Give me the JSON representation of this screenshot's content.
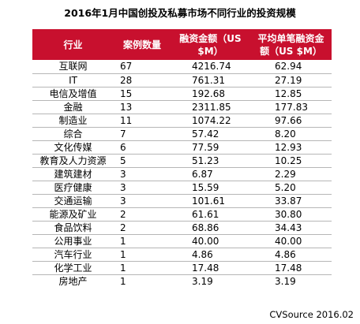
{
  "title": "2016年1月中国创投及私募市场不同行业的投资规模",
  "table": {
    "headers": {
      "industry": "行业",
      "count": "案例数量",
      "amount": "融资金额（US $M）",
      "avg": "平均单笔融资金额（US $M）"
    },
    "rows": [
      {
        "industry": "互联网",
        "count": "67",
        "amount": "4216.74",
        "avg": "62.94"
      },
      {
        "industry": "IT",
        "count": "28",
        "amount": "761.31",
        "avg": "27.19"
      },
      {
        "industry": "电信及增值",
        "count": "15",
        "amount": "192.68",
        "avg": "12.85"
      },
      {
        "industry": "金融",
        "count": "13",
        "amount": "2311.85",
        "avg": "177.83"
      },
      {
        "industry": "制造业",
        "count": "11",
        "amount": "1074.22",
        "avg": "97.66"
      },
      {
        "industry": "综合",
        "count": "7",
        "amount": "57.42",
        "avg": "8.20"
      },
      {
        "industry": "文化传媒",
        "count": "6",
        "amount": "77.59",
        "avg": "12.93"
      },
      {
        "industry": "教育及人力资源",
        "count": "5",
        "amount": "51.23",
        "avg": "10.25"
      },
      {
        "industry": "建筑建材",
        "count": "3",
        "amount": "6.87",
        "avg": "2.29"
      },
      {
        "industry": "医疗健康",
        "count": "3",
        "amount": "15.59",
        "avg": "5.20"
      },
      {
        "industry": "交通运输",
        "count": "3",
        "amount": "101.61",
        "avg": "33.87"
      },
      {
        "industry": "能源及矿业",
        "count": "2",
        "amount": "61.61",
        "avg": "30.80"
      },
      {
        "industry": "食品饮料",
        "count": "2",
        "amount": "68.86",
        "avg": "34.43"
      },
      {
        "industry": "公用事业",
        "count": "1",
        "amount": "40.00",
        "avg": "40.00"
      },
      {
        "industry": "汽车行业",
        "count": "1",
        "amount": "4.86",
        "avg": "4.86"
      },
      {
        "industry": "化学工业",
        "count": "1",
        "amount": "17.48",
        "avg": "17.48"
      },
      {
        "industry": "房地产",
        "count": "1",
        "amount": "3.19",
        "avg": "3.19"
      }
    ]
  },
  "source": "CVSource 2016.02",
  "colors": {
    "header_background": "#c8102e",
    "header_text": "#ffffff",
    "row_divider": "#b6b6b6"
  }
}
